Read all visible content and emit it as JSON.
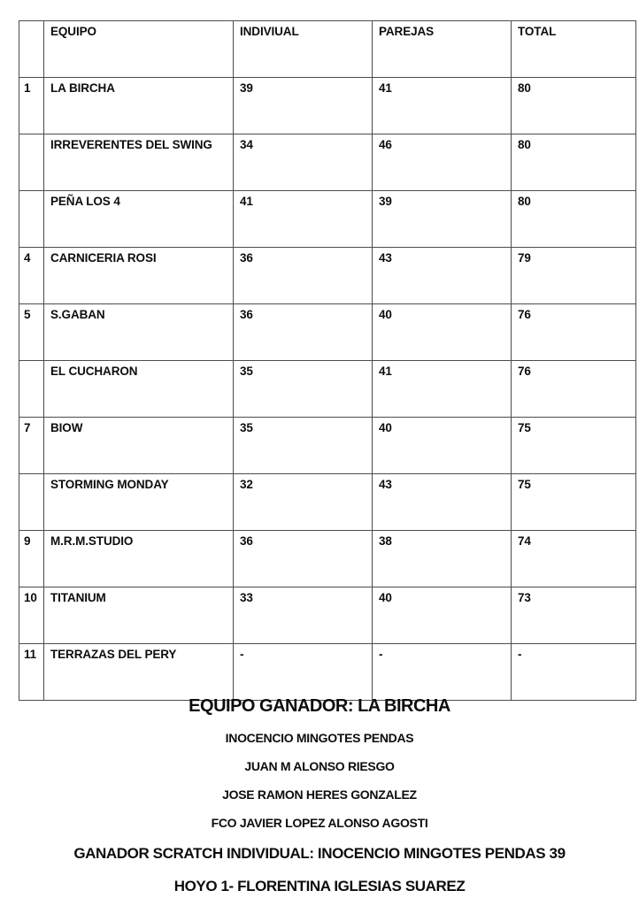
{
  "page": {
    "background_color": "#ffffff",
    "text_color": "#0d0d0d",
    "table_border_color": "#4c4c4c"
  },
  "table": {
    "headers": [
      "",
      "EQUIPO",
      "INDIVIUAL",
      "PAREJAS",
      "TOTAL"
    ],
    "column_keys": [
      "rank",
      "equipo",
      "individual",
      "parejas",
      "total"
    ],
    "rows": [
      {
        "rank": "1",
        "equipo": "LA BIRCHA",
        "individual": "39",
        "parejas": "41",
        "total": "80"
      },
      {
        "rank": "",
        "equipo": "IRREVERENTES DEL SWING",
        "individual": "34",
        "parejas": "46",
        "total": "80"
      },
      {
        "rank": "",
        "equipo": "PEÑA LOS 4",
        "individual": "41",
        "parejas": "39",
        "total": "80"
      },
      {
        "rank": "4",
        "equipo": "CARNICERIA ROSI",
        "individual": "36",
        "parejas": "43",
        "total": "79"
      },
      {
        "rank": "5",
        "equipo": "S.GABAN",
        "individual": "36",
        "parejas": "40",
        "total": "76"
      },
      {
        "rank": "",
        "equipo": "EL CUCHARON",
        "individual": "35",
        "parejas": "41",
        "total": "76"
      },
      {
        "rank": "7",
        "equipo": "BIOW",
        "individual": "35",
        "parejas": "40",
        "total": "75"
      },
      {
        "rank": "",
        "equipo": "STORMING MONDAY",
        "individual": "32",
        "parejas": "43",
        "total": "75"
      },
      {
        "rank": "9",
        "equipo": "M.R.M.STUDIO",
        "individual": "36",
        "parejas": "38",
        "total": "74"
      },
      {
        "rank": "10",
        "equipo": "TITANIUM",
        "individual": "33",
        "parejas": "40",
        "total": "73"
      },
      {
        "rank": "11",
        "equipo": "TERRAZAS DEL PERY",
        "individual": "-",
        "parejas": "-",
        "total": "-"
      }
    ]
  },
  "footer": {
    "winner_title": "EQUIPO GANADOR: LA BIRCHA",
    "winner_players": [
      "INOCENCIO MINGOTES PENDAS",
      "JUAN M ALONSO RIESGO",
      "JOSE RAMON HERES GONZALEZ",
      "FCO JAVIER LOPEZ ALONSO AGOSTI"
    ],
    "scratch_winner_line": "GANADOR SCRATCH INDIVIDUAL: INOCENCIO MINGOTES PENDAS 39",
    "hoyo_line": "HOYO 1- FLORENTINA IGLESIAS SUAREZ"
  }
}
